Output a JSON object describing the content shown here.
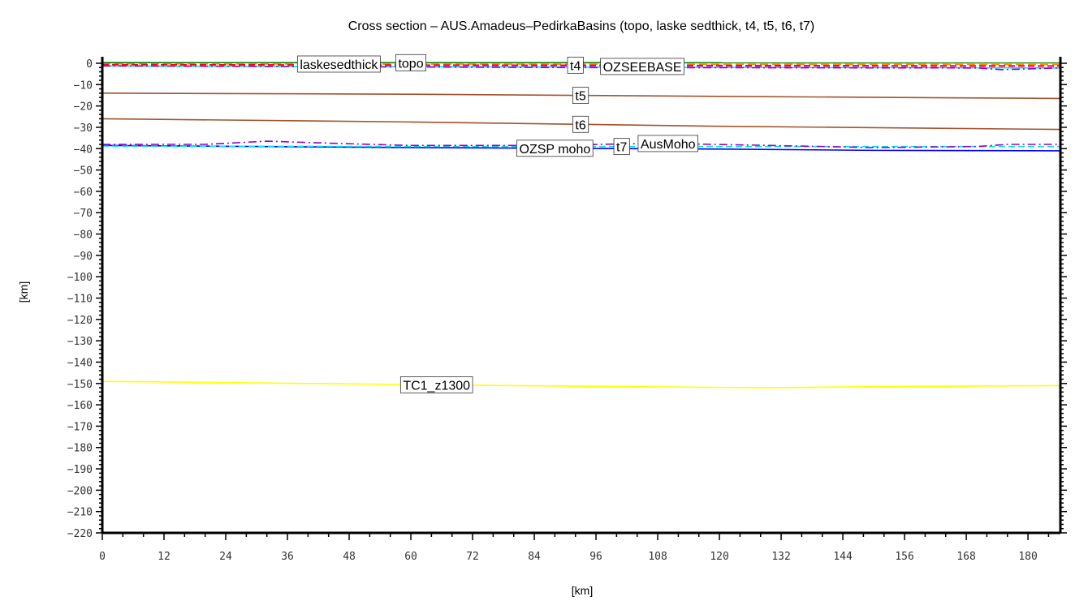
{
  "chart_data": {
    "type": "line",
    "title": "Cross section – AUS.Amadeus–PedirkaBasins (topo, laske sedthick, t4, t5, t6, t7)",
    "xlabel": "[km]",
    "ylabel": "[km]",
    "xlim": [
      0,
      186.3
    ],
    "ylim": [
      -220,
      3
    ],
    "xticks": [
      0,
      12,
      24,
      36,
      48,
      60,
      72,
      84,
      96,
      108,
      120,
      132,
      144,
      156,
      168,
      180
    ],
    "yticks": [
      0,
      -10,
      -20,
      -30,
      -40,
      -50,
      -60,
      -70,
      -80,
      -90,
      -100,
      -110,
      -120,
      -130,
      -140,
      -150,
      -160,
      -170,
      -180,
      -190,
      -200,
      -210,
      -220
    ],
    "grid": false,
    "series": [
      {
        "name": "topo",
        "color": "#008000",
        "dash": "",
        "x": [
          0,
          186.3
        ],
        "y": [
          0.3,
          0.2
        ],
        "label_at": 60
      },
      {
        "name": "laskesedthick",
        "color": "#ff8c00",
        "dash": "10,5",
        "x": [
          0,
          186.3
        ],
        "y": [
          -0.3,
          -0.6
        ],
        "label_at": 58
      },
      {
        "name": "t4",
        "color": "#ff0000",
        "dash": "8,4",
        "x": [
          0,
          60,
          186.3
        ],
        "y": [
          -0.6,
          -0.8,
          -1.2
        ],
        "label_at": 92
      },
      {
        "name": "OZSEEBASE",
        "color": "#ff00ff",
        "dash": "8,4",
        "x": [
          0,
          60,
          120,
          186.3
        ],
        "y": [
          -1,
          -1.2,
          -1.6,
          -2
        ],
        "label_at": 93
      },
      {
        "name": "",
        "color": "#00e5ee",
        "dash": "",
        "x": [
          0,
          90,
          186.3
        ],
        "y": [
          -1.3,
          -1.8,
          -2.2
        ],
        "label_at": null
      },
      {
        "name": "",
        "color": "#9400d3",
        "dash": "10,4,2,4",
        "x": [
          0,
          90,
          170,
          175,
          186.3
        ],
        "y": [
          -1.2,
          -2,
          -2.2,
          -3,
          -2.2
        ],
        "label_at": null
      },
      {
        "name": "t5",
        "color": "#a0522d",
        "dash": "",
        "x": [
          0,
          60,
          120,
          186.3
        ],
        "y": [
          -14,
          -14.5,
          -15.5,
          -16.5
        ],
        "label_at": 93
      },
      {
        "name": "t6",
        "color": "#a0522d",
        "dash": "",
        "x": [
          0,
          60,
          120,
          186.3
        ],
        "y": [
          -26,
          -27.5,
          -29.5,
          -31
        ],
        "label_at": 93
      },
      {
        "name": "OZSP moho",
        "color": "#0000ff",
        "dash": "",
        "x": [
          0,
          60,
          120,
          150,
          186.3
        ],
        "y": [
          -38.5,
          -39.5,
          -40.2,
          -40.8,
          -41
        ],
        "label_at": 88
      },
      {
        "name": "t7",
        "color": "#00e5ee",
        "dash": "8,4",
        "x": [
          0,
          60,
          120,
          186.3
        ],
        "y": [
          -38.8,
          -39,
          -39,
          -39
        ],
        "label_at": 93
      },
      {
        "name": "AusMoho",
        "color": "#9400d3",
        "dash": "10,4,2,4",
        "x": [
          0,
          20,
          32,
          45,
          60,
          85,
          108,
          130,
          150,
          170,
          176,
          186.3
        ],
        "y": [
          -38,
          -38,
          -36.5,
          -37.5,
          -38.5,
          -38.5,
          -37.5,
          -38.5,
          -39.5,
          -39,
          -38,
          -38
        ],
        "label_at": 90
      },
      {
        "name": "TC1_z1300",
        "color": "#ffff00",
        "dash": "",
        "x": [
          0,
          40,
          80,
          128,
          150,
          186.3
        ],
        "y": [
          -149,
          -150,
          -151,
          -152,
          -151.5,
          -151
        ],
        "label_at": 65
      }
    ]
  }
}
